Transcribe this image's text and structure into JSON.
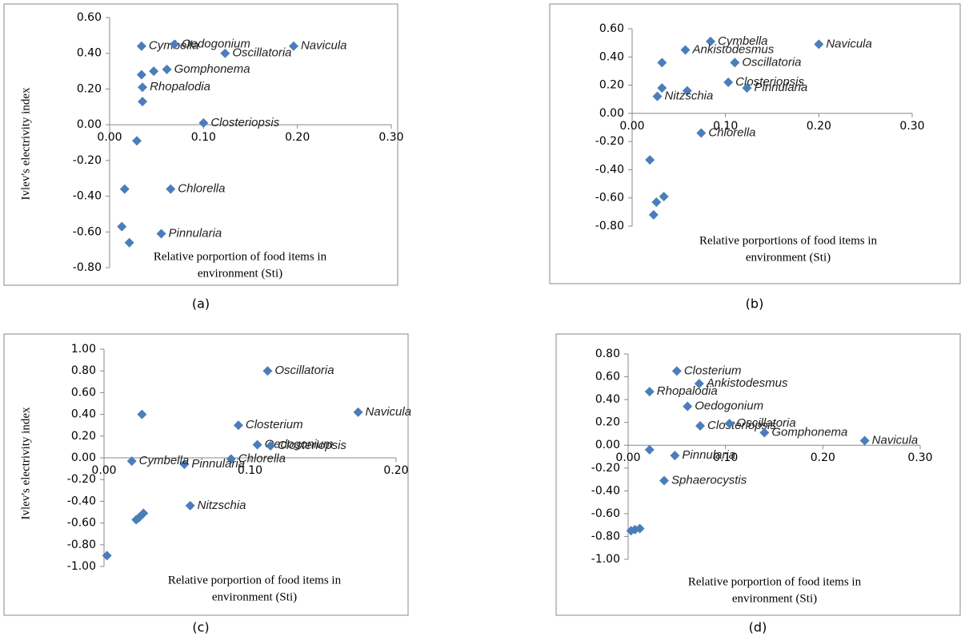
{
  "chart_data": [
    {
      "type": "scatter",
      "color": "#4a7ebb",
      "ylabel": "Ivlev's electrivity index",
      "xlabel": [
        "Relative porportion of food items in",
        "environment (Sti)"
      ],
      "caption": "(a)",
      "xlim": [
        0,
        0.3
      ],
      "ylim": [
        -0.8,
        0.6
      ],
      "xticks": [
        {
          "value": 0,
          "label": "0.00"
        },
        {
          "value": 0.1,
          "label": "0.10"
        },
        {
          "value": 0.2,
          "label": "0.20"
        },
        {
          "value": 0.3,
          "label": "0.30"
        }
      ],
      "yticks": [
        {
          "value": 0.6,
          "label": "0.60"
        },
        {
          "value": 0.4,
          "label": "0.40"
        },
        {
          "value": 0.2,
          "label": "0.20"
        },
        {
          "value": 0,
          "label": "0.00"
        },
        {
          "value": -0.2,
          "label": "-0.20"
        },
        {
          "value": -0.4,
          "label": "-0.40"
        },
        {
          "value": -0.6,
          "label": "-0.60"
        },
        {
          "value": -0.8,
          "label": "-0.80"
        }
      ],
      "x": [
        0.034,
        0.069,
        0.123,
        0.196,
        0.061,
        0.047,
        0.034,
        0.035,
        0.035,
        0.1,
        0.029,
        0.016,
        0.065,
        0.013,
        0.021,
        0.055
      ],
      "values": [
        0.44,
        0.45,
        0.4,
        0.44,
        0.31,
        0.3,
        0.28,
        0.21,
        0.13,
        0.01,
        -0.09,
        -0.36,
        -0.36,
        -0.57,
        -0.66,
        -0.61
      ],
      "labels": [
        "Cymbella",
        "Oedogonium",
        "Oscillatoria",
        "Navicula",
        "Gomphonema",
        null,
        null,
        "Rhopalodia",
        null,
        "Closteriopsis",
        null,
        null,
        "Chlorella",
        null,
        null,
        "Pinnularia"
      ]
    },
    {
      "type": "scatter",
      "color": "#4a7ebb",
      "xlabel": [
        "Relative porportions of food items in",
        "environment (Sti)"
      ],
      "caption": "(b)",
      "xlim": [
        0,
        0.3
      ],
      "ylim": [
        -0.8,
        0.6
      ],
      "xticks": [
        {
          "value": 0,
          "label": "0.00"
        },
        {
          "value": 0.1,
          "label": "0.10"
        },
        {
          "value": 0.2,
          "label": "0.20"
        },
        {
          "value": 0.3,
          "label": "0.30"
        }
      ],
      "yticks": [
        {
          "value": 0.6,
          "label": "0.60"
        },
        {
          "value": 0.4,
          "label": "0.40"
        },
        {
          "value": 0.2,
          "label": "0.20"
        },
        {
          "value": 0,
          "label": "0.00"
        },
        {
          "value": -0.2,
          "label": "-0.20"
        },
        {
          "value": -0.4,
          "label": "-0.40"
        },
        {
          "value": -0.6,
          "label": "-0.60"
        },
        {
          "value": -0.8,
          "label": "-0.80"
        }
      ],
      "x": [
        0.084,
        0.057,
        0.2,
        0.032,
        0.11,
        0.103,
        0.032,
        0.059,
        0.123,
        0.027,
        0.074,
        0.019,
        0.034,
        0.026,
        0.023
      ],
      "values": [
        0.51,
        0.45,
        0.49,
        0.36,
        0.36,
        0.22,
        0.18,
        0.16,
        0.18,
        0.12,
        -0.14,
        -0.33,
        -0.59,
        -0.63,
        -0.72
      ],
      "labels": [
        "Cymbella",
        "Ankistodesmus",
        "Navicula",
        null,
        "Oscillatoria",
        "Closteriopsis",
        null,
        null,
        "Pinnularia",
        "Nitzschia",
        "Chlorella",
        null,
        null,
        null,
        null
      ]
    },
    {
      "type": "scatter",
      "color": "#4a7ebb",
      "ylabel": "Ivlev's electrivity index",
      "xlabel": [
        "Relative porportion of food items in",
        "environment (Sti)"
      ],
      "caption": "(c)",
      "xlim": [
        0,
        0.2
      ],
      "ylim": [
        -1,
        1
      ],
      "xticks": [
        {
          "value": 0,
          "label": "0.00"
        },
        {
          "value": 0.1,
          "label": "0.10"
        },
        {
          "value": 0.2,
          "label": "0.20"
        }
      ],
      "yticks": [
        {
          "value": 1,
          "label": "1.00"
        },
        {
          "value": 0.8,
          "label": "0.80"
        },
        {
          "value": 0.6,
          "label": "0.60"
        },
        {
          "value": 0.4,
          "label": "0.40"
        },
        {
          "value": 0.2,
          "label": "0.20"
        },
        {
          "value": 0,
          "label": "0.00"
        },
        {
          "value": -0.2,
          "label": "-0.20"
        },
        {
          "value": -0.4,
          "label": "-0.40"
        },
        {
          "value": -0.6,
          "label": "-0.60"
        },
        {
          "value": -0.8,
          "label": "-0.80"
        },
        {
          "value": -1,
          "label": "-1.00"
        }
      ],
      "x": [
        0.112,
        0.174,
        0.026,
        0.092,
        0.105,
        0.114,
        0.087,
        0.055,
        0.019,
        0.059,
        0.027,
        0.024,
        0.022,
        0.002
      ],
      "values": [
        0.8,
        0.42,
        0.4,
        0.3,
        0.12,
        0.11,
        -0.01,
        -0.06,
        -0.03,
        -0.44,
        -0.51,
        -0.55,
        -0.57,
        -0.9
      ],
      "labels": [
        "Oscillatoria",
        "Navicula",
        null,
        "Closterium",
        "Oedogonium",
        "Closteriopsis",
        "Chlorella",
        "Pinnularia",
        "Cymbella",
        "Nitzschia",
        null,
        null,
        null,
        null
      ]
    },
    {
      "type": "scatter",
      "color": "#4a7ebb",
      "xlabel": [
        "Relative porportion of food items in",
        "environment (Sti)"
      ],
      "caption": "(d)",
      "xlim": [
        0,
        0.3
      ],
      "ylim": [
        -1,
        0.8
      ],
      "xticks": [
        {
          "value": 0,
          "label": "0.00"
        },
        {
          "value": 0.1,
          "label": "0.10"
        },
        {
          "value": 0.2,
          "label": "0.20"
        },
        {
          "value": 0.3,
          "label": "0.30"
        }
      ],
      "yticks": [
        {
          "value": 0.8,
          "label": "0.80"
        },
        {
          "value": 0.6,
          "label": "0.60"
        },
        {
          "value": 0.4,
          "label": "0.40"
        },
        {
          "value": 0.2,
          "label": "0.20"
        },
        {
          "value": 0,
          "label": "0.00"
        },
        {
          "value": -0.2,
          "label": "-0.20"
        },
        {
          "value": -0.4,
          "label": "-0.40"
        },
        {
          "value": -0.6,
          "label": "-0.60"
        },
        {
          "value": -0.8,
          "label": "-0.80"
        },
        {
          "value": -1,
          "label": "-1.00"
        }
      ],
      "x": [
        0.05,
        0.073,
        0.022,
        0.061,
        0.074,
        0.104,
        0.14,
        0.243,
        0.022,
        0.048,
        0.037,
        0.003,
        0.007,
        0.012
      ],
      "values": [
        0.65,
        0.54,
        0.47,
        0.34,
        0.17,
        0.19,
        0.11,
        0.04,
        -0.04,
        -0.09,
        -0.31,
        -0.75,
        -0.74,
        -0.73
      ],
      "labels": [
        "Closterium",
        "Ankistodesmus",
        "Rhopalodia",
        "Oedogonium",
        "Closteriopsis",
        "Oscillatoria",
        "Gomphonema",
        "Navicula",
        null,
        "Pinnularia",
        "Sphaerocystis",
        null,
        null,
        null
      ]
    }
  ]
}
